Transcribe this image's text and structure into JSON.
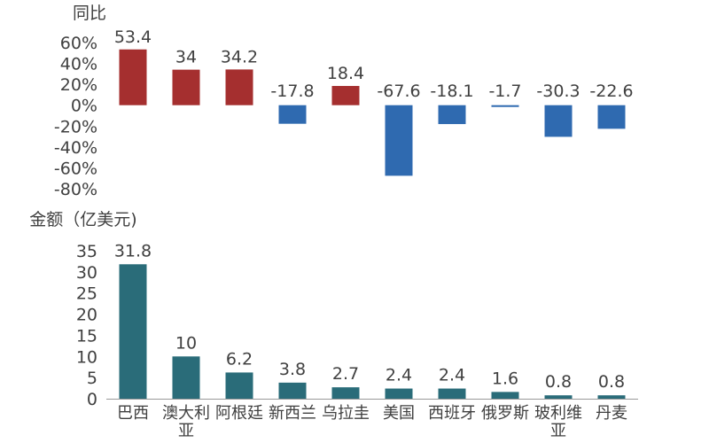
{
  "chart_data": [
    {
      "type": "bar",
      "ylabel": "同比",
      "categories": [
        "巴西",
        "澳大利亚",
        "阿根廷",
        "新西兰",
        "乌拉圭",
        "美国",
        "西班牙",
        "俄罗斯",
        "玻利维亚",
        "丹麦"
      ],
      "values": [
        53.4,
        34,
        34.2,
        -17.8,
        18.4,
        -67.6,
        -18.1,
        -1.7,
        -30.3,
        -22.6
      ],
      "data_labels": [
        "53.4",
        "34",
        "34.2",
        "-17.8",
        "18.4",
        "-67.6",
        "-18.1",
        "-1.7",
        "-30.3",
        "-22.6"
      ],
      "ylim": [
        -80,
        60
      ],
      "yticks": [
        "60%",
        "40%",
        "20%",
        "0%",
        "-20%",
        "-40%",
        "-60%",
        "-80%"
      ],
      "colors": {
        "positive": "#a52f2f",
        "negative": "#2f6ab0"
      }
    },
    {
      "type": "bar",
      "ylabel": "金额（亿美元)",
      "categories": [
        "巴西",
        "澳大利亚",
        "阿根廷",
        "新西兰",
        "乌拉圭",
        "美国",
        "西班牙",
        "俄罗斯",
        "玻利维亚",
        "丹麦"
      ],
      "category_labels": [
        [
          "巴西"
        ],
        [
          "澳大利",
          "亚"
        ],
        [
          "阿根廷"
        ],
        [
          "新西兰"
        ],
        [
          "乌拉圭"
        ],
        [
          "美国"
        ],
        [
          "西班牙"
        ],
        [
          "俄罗斯"
        ],
        [
          "玻利维",
          "亚"
        ],
        [
          "丹麦"
        ]
      ],
      "values": [
        31.8,
        10,
        6.2,
        3.8,
        2.7,
        2.4,
        2.4,
        1.6,
        0.8,
        0.8
      ],
      "data_labels": [
        "31.8",
        "10",
        "6.2",
        "3.8",
        "2.7",
        "2.4",
        "2.4",
        "1.6",
        "0.8",
        "0.8"
      ],
      "ylim": [
        0,
        35
      ],
      "yticks": [
        "35",
        "30",
        "25",
        "20",
        "15",
        "10",
        "5",
        "0"
      ],
      "colors": {
        "bar": "#2a6c79"
      }
    }
  ]
}
